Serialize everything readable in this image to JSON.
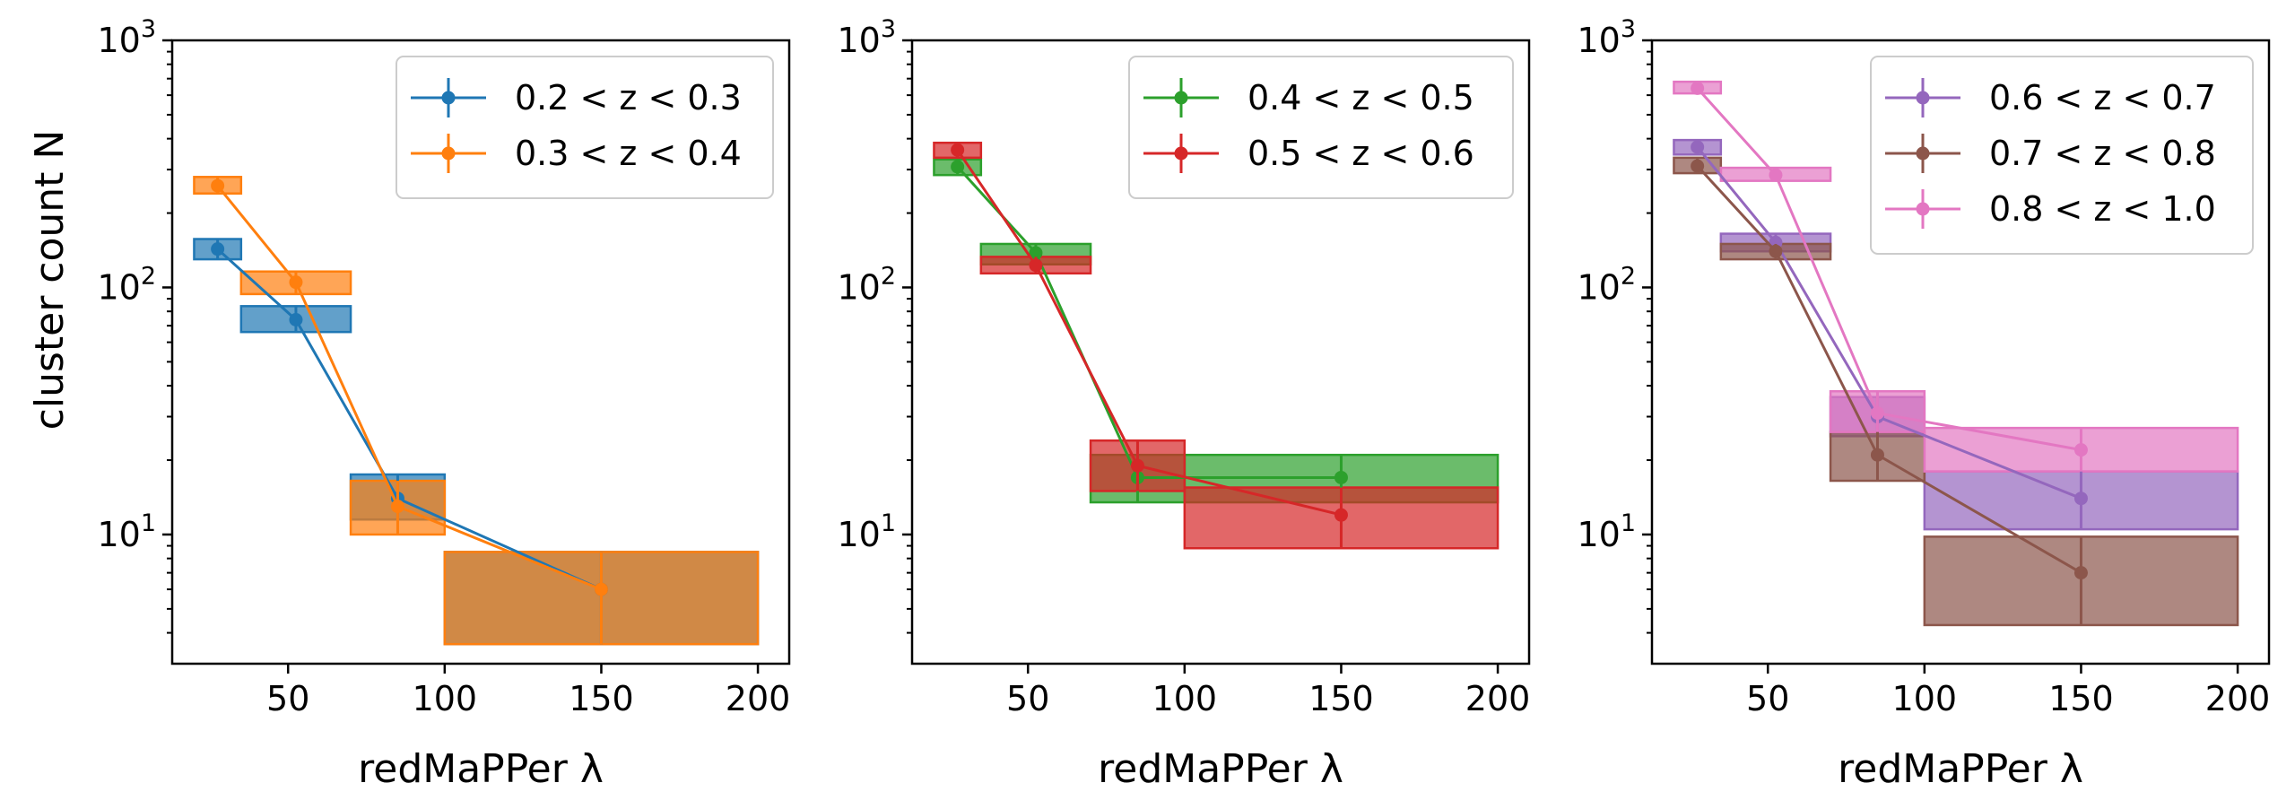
{
  "figure": {
    "ylabel": "cluster count N",
    "xlabel": "redMaPPer λ"
  },
  "chart_data": [
    {
      "type": "line",
      "xlabel": "redMaPPer λ",
      "ylabel": "cluster count N",
      "xlim": [
        13,
        210
      ],
      "ylim": [
        3,
        1000
      ],
      "yscale": "log",
      "xticks": [
        50,
        100,
        150,
        200
      ],
      "yticks": [
        {
          "v": 10,
          "mant": "10",
          "exp": "1"
        },
        {
          "v": 100,
          "mant": "10",
          "exp": "2"
        },
        {
          "v": 1000,
          "mant": "10",
          "exp": "3"
        }
      ],
      "legend_position": "top-right",
      "series": [
        {
          "name": "0.2 < z < 0.3",
          "color": "#1f77b4",
          "x": [
            27.5,
            52.5,
            85,
            150
          ],
          "y": [
            143,
            74,
            14,
            6
          ],
          "bins": [
            [
              20,
              35
            ],
            [
              35,
              70
            ],
            [
              70,
              100
            ],
            [
              100,
              200
            ]
          ],
          "ylo": [
            130,
            66,
            11.5,
            3.6
          ],
          "yhi": [
            157,
            84,
            17.5,
            8.5
          ]
        },
        {
          "name": "0.3 < z < 0.4",
          "color": "#ff7f0e",
          "x": [
            27.5,
            52.5,
            85,
            150
          ],
          "y": [
            258,
            105,
            13,
            6
          ],
          "bins": [
            [
              20,
              35
            ],
            [
              35,
              70
            ],
            [
              70,
              100
            ],
            [
              100,
              200
            ]
          ],
          "ylo": [
            240,
            94,
            10,
            3.6
          ],
          "yhi": [
            280,
            116,
            16.5,
            8.5
          ]
        }
      ]
    },
    {
      "type": "line",
      "xlabel": "redMaPPer λ",
      "ylabel": "",
      "xlim": [
        13,
        210
      ],
      "ylim": [
        3,
        1000
      ],
      "yscale": "log",
      "xticks": [
        50,
        100,
        150,
        200
      ],
      "yticks": [
        {
          "v": 10,
          "mant": "10",
          "exp": "1"
        },
        {
          "v": 100,
          "mant": "10",
          "exp": "2"
        },
        {
          "v": 1000,
          "mant": "10",
          "exp": "3"
        }
      ],
      "legend_position": "top-right",
      "series": [
        {
          "name": "0.4 < z < 0.5",
          "color": "#2ca02c",
          "x": [
            27.5,
            52.5,
            85,
            150
          ],
          "y": [
            308,
            138,
            17,
            17
          ],
          "bins": [
            [
              20,
              35
            ],
            [
              35,
              70
            ],
            [
              70,
              100
            ],
            [
              100,
              200
            ]
          ],
          "ylo": [
            285,
            124,
            13.5,
            13.5
          ],
          "yhi": [
            330,
            150,
            21,
            21
          ]
        },
        {
          "name": "0.5 < z < 0.6",
          "color": "#d62728",
          "x": [
            27.5,
            52.5,
            85,
            150
          ],
          "y": [
            360,
            123,
            19,
            12
          ],
          "bins": [
            [
              20,
              35
            ],
            [
              35,
              70
            ],
            [
              70,
              100
            ],
            [
              100,
              200
            ]
          ],
          "ylo": [
            335,
            114,
            15,
            8.8
          ],
          "yhi": [
            385,
            133,
            24,
            15.5
          ]
        }
      ]
    },
    {
      "type": "line",
      "xlabel": "redMaPPer λ",
      "ylabel": "",
      "xlim": [
        13,
        210
      ],
      "ylim": [
        3,
        1000
      ],
      "yscale": "log",
      "xticks": [
        50,
        100,
        150,
        200
      ],
      "yticks": [
        {
          "v": 10,
          "mant": "10",
          "exp": "1"
        },
        {
          "v": 100,
          "mant": "10",
          "exp": "2"
        },
        {
          "v": 1000,
          "mant": "10",
          "exp": "3"
        }
      ],
      "legend_position": "top-right",
      "series": [
        {
          "name": "0.6 < z < 0.7",
          "color": "#9467bd",
          "x": [
            27.5,
            52.5,
            85,
            150
          ],
          "y": [
            370,
            152,
            30,
            14
          ],
          "bins": [
            [
              20,
              35
            ],
            [
              35,
              70
            ],
            [
              70,
              100
            ],
            [
              100,
              200
            ]
          ],
          "ylo": [
            345,
            140,
            25,
            10.5
          ],
          "yhi": [
            395,
            165,
            36,
            18
          ]
        },
        {
          "name": "0.7 < z < 0.8",
          "color": "#8c564b",
          "x": [
            27.5,
            52.5,
            85,
            150
          ],
          "y": [
            310,
            140,
            21,
            7
          ],
          "bins": [
            [
              20,
              35
            ],
            [
              35,
              70
            ],
            [
              70,
              100
            ],
            [
              100,
              200
            ]
          ],
          "ylo": [
            290,
            130,
            16.5,
            4.3
          ],
          "yhi": [
            335,
            150,
            26,
            9.8
          ]
        },
        {
          "name": "0.8 < z < 1.0",
          "color": "#e377c2",
          "x": [
            27.5,
            52.5,
            85,
            150
          ],
          "y": [
            640,
            285,
            31,
            22
          ],
          "bins": [
            [
              20,
              35
            ],
            [
              35,
              70
            ],
            [
              70,
              100
            ],
            [
              100,
              200
            ]
          ],
          "ylo": [
            610,
            270,
            26,
            18
          ],
          "yhi": [
            680,
            305,
            38,
            27
          ]
        }
      ]
    }
  ]
}
